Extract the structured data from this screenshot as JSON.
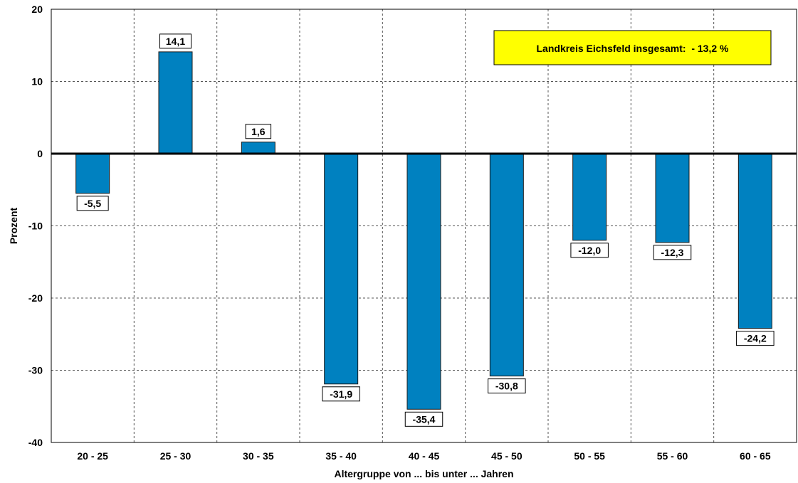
{
  "chart_data": {
    "type": "bar",
    "categories": [
      "20 - 25",
      "25 - 30",
      "30 - 35",
      "35 - 40",
      "40 - 45",
      "45 - 50",
      "50 - 55",
      "55 - 60",
      "60 - 65"
    ],
    "values": [
      -5.5,
      14.1,
      1.6,
      -31.9,
      -35.4,
      -30.8,
      -12.0,
      -12.3,
      -24.2
    ],
    "value_labels": [
      "-5,5",
      "14,1",
      "1,6",
      "-31,9",
      "-35,4",
      "-30,8",
      "-12,0",
      "-12,3",
      "-24,2"
    ],
    "xlabel": "Altergruppe von ... bis unter ... Jahren",
    "ylabel": "Prozent",
    "ylim": [
      -40,
      20
    ],
    "yticks": [
      20,
      10,
      0,
      -10,
      -20,
      -30,
      -40
    ],
    "ytick_labels": [
      "20",
      "10",
      "0",
      "-10",
      "-20",
      "-30",
      "-40"
    ],
    "grid": true,
    "legend": false,
    "annotation": "Landkreis Eichsfeld insgesamt:  - 13,2 %",
    "colors": {
      "bar": "#0081C0",
      "bar_edge": "#1a1a1a",
      "annotation_bg": "#FFFF00",
      "grid": "#555555"
    }
  }
}
